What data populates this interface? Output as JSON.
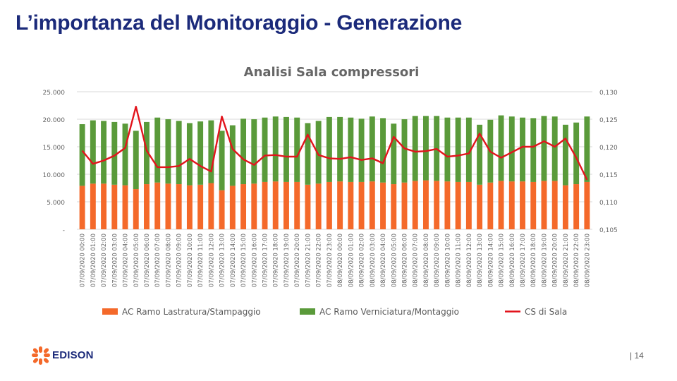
{
  "slide": {
    "title": "L’importanza del Monitoraggio - Generazione",
    "page_number": "| 14",
    "logo_text": "EDISON"
  },
  "colors": {
    "title": "#1b2a7a",
    "series_orange": "#f4692a",
    "series_green": "#5a9a3a",
    "series_red": "#e2141c"
  },
  "chart_data": {
    "type": "bar",
    "stacked": true,
    "title": "Analisi Sala compressori",
    "categories": [
      "07/09/2020 00:00",
      "07/09/2020 01:00",
      "07/09/2020 02:00",
      "07/09/2020 03:00",
      "07/09/2020 04:00",
      "07/09/2020 05:00",
      "07/09/2020 06:00",
      "07/09/2020 07:00",
      "07/09/2020 08:00",
      "07/09/2020 09:00",
      "07/09/2020 10:00",
      "07/09/2020 11:00",
      "07/09/2020 12:00",
      "07/09/2020 13:00",
      "07/09/2020 14:00",
      "07/09/2020 15:00",
      "07/09/2020 16:00",
      "07/09/2020 17:00",
      "07/09/2020 18:00",
      "07/09/2020 19:00",
      "07/09/2020 20:00",
      "07/09/2020 21:00",
      "07/09/2020 22:00",
      "07/09/2020 23:00",
      "08/09/2020 00:00",
      "08/09/2020 01:00",
      "08/09/2020 02:00",
      "08/09/2020 03:00",
      "08/09/2020 04:00",
      "08/09/2020 05:00",
      "08/09/2020 06:00",
      "08/09/2020 07:00",
      "08/09/2020 08:00",
      "08/09/2020 09:00",
      "08/09/2020 10:00",
      "08/09/2020 11:00",
      "08/09/2020 12:00",
      "08/09/2020 13:00",
      "08/09/2020 14:00",
      "08/09/2020 15:00",
      "08/09/2020 16:00",
      "08/09/2020 17:00",
      "08/09/2020 18:00",
      "08/09/2020 19:00",
      "08/09/2020 20:00",
      "08/09/2020 21:00",
      "08/09/2020 22:00",
      "08/09/2020 23:00"
    ],
    "series": [
      {
        "name": "AC Ramo Lastratura/Stampaggio",
        "color": "#f4692a",
        "axis": "left",
        "values": [
          7900,
          8300,
          8300,
          8100,
          8000,
          7300,
          8200,
          8500,
          8300,
          8200,
          8000,
          8100,
          8400,
          7100,
          7900,
          8200,
          8300,
          8600,
          8700,
          8600,
          8600,
          8100,
          8300,
          8600,
          8700,
          8600,
          8600,
          8700,
          8500,
          8200,
          8500,
          8800,
          8900,
          8800,
          8700,
          8600,
          8600,
          8100,
          8500,
          8800,
          8700,
          8700,
          8600,
          8800,
          8800,
          8000,
          8200,
          8600
        ]
      },
      {
        "name": "AC Ramo Verniciatura/Montaggio",
        "color": "#5a9a3a",
        "axis": "left",
        "values": [
          11200,
          11500,
          11400,
          11400,
          11200,
          10600,
          11300,
          11800,
          11700,
          11500,
          11300,
          11500,
          11400,
          10800,
          11000,
          11900,
          11700,
          11700,
          11800,
          11800,
          11700,
          11200,
          11400,
          11800,
          11700,
          11700,
          11500,
          11800,
          11700,
          11000,
          11500,
          11800,
          11700,
          11800,
          11600,
          11700,
          11700,
          10900,
          11400,
          11900,
          11800,
          11600,
          11600,
          11800,
          11700,
          11000,
          11200,
          11900
        ]
      },
      {
        "name": "CS di Sala",
        "color": "#e2141c",
        "type": "line",
        "axis": "right",
        "values": [
          0.1193,
          0.1169,
          0.1175,
          0.1184,
          0.1198,
          0.1273,
          0.1193,
          0.1163,
          0.1163,
          0.1165,
          0.1178,
          0.1165,
          0.1155,
          0.1255,
          0.1196,
          0.1177,
          0.1167,
          0.1184,
          0.1185,
          0.1182,
          0.1182,
          0.1222,
          0.1185,
          0.1179,
          0.1178,
          0.1181,
          0.1176,
          0.1179,
          0.117,
          0.1218,
          0.1197,
          0.1191,
          0.1192,
          0.1196,
          0.1182,
          0.1184,
          0.1188,
          0.1224,
          0.1191,
          0.118,
          0.119,
          0.12,
          0.12,
          0.121,
          0.12,
          0.1215,
          0.118,
          0.114
        ]
      }
    ],
    "y_left": {
      "min": 0,
      "max": 25000,
      "ticks": [
        "-",
        "5.000",
        "10.000",
        "15.000",
        "20.000",
        "25.000"
      ]
    },
    "y_right": {
      "min": 0.105,
      "max": 0.13,
      "ticks": [
        "0,105",
        "0,110",
        "0,115",
        "0,120",
        "0,125",
        "0,130"
      ]
    },
    "grid": true,
    "legend": "bottom"
  }
}
